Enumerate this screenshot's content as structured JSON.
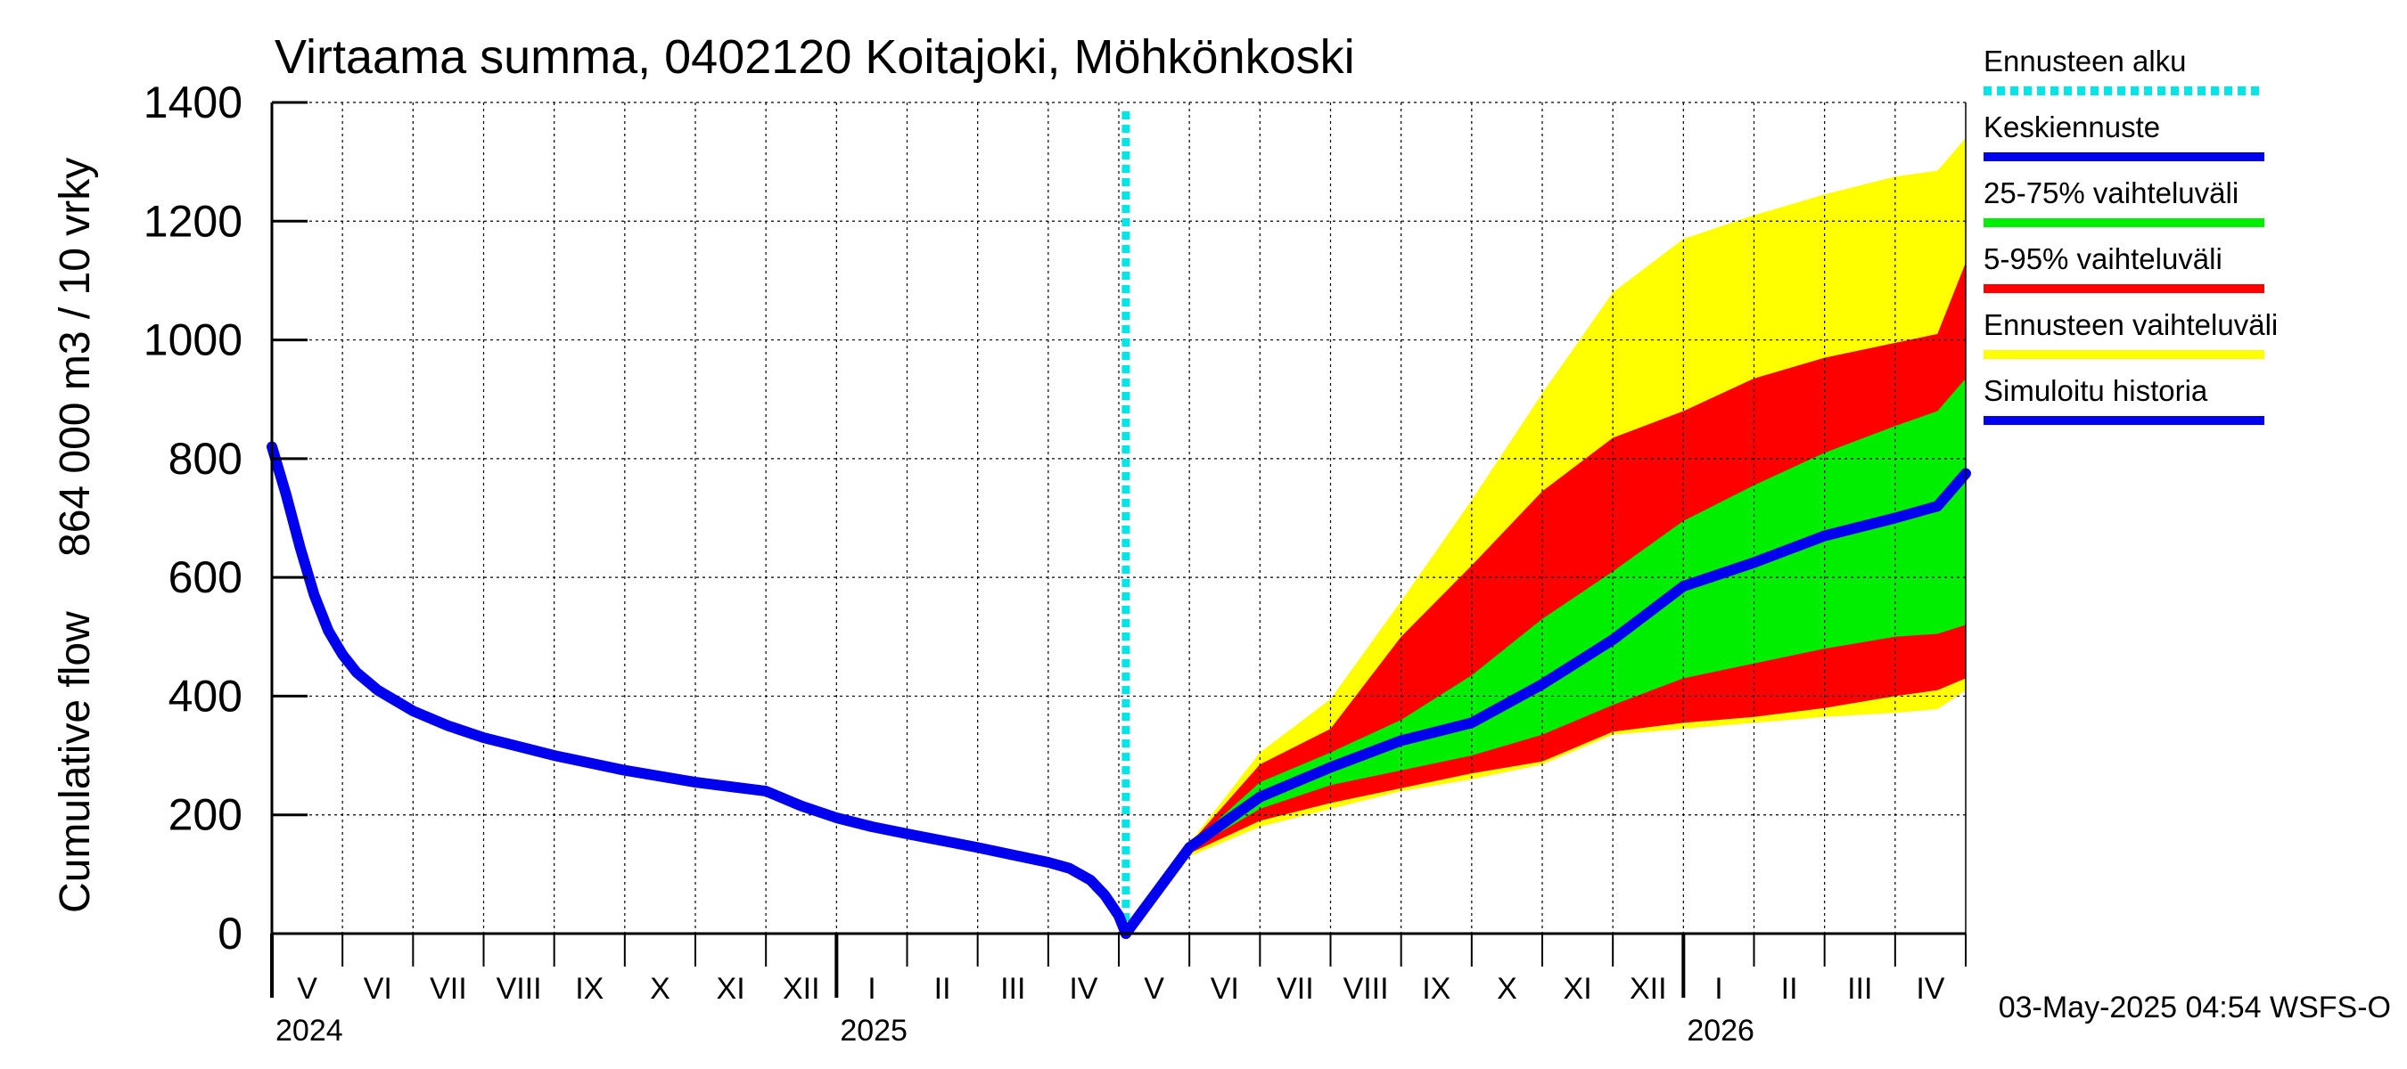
{
  "chart_data": {
    "type": "area",
    "title": "Virtaama summa, 0402120 Koitajoki, Möhkönkoski",
    "ylabel_line1": "Cumulative flow",
    "ylabel_line2": "864 000 m3 / 10 vrky",
    "ylim": [
      0,
      1400
    ],
    "yticks": [
      0,
      200,
      400,
      600,
      800,
      1000,
      1200,
      1400
    ],
    "x_range_months": [
      0,
      24
    ],
    "x_origin": "2024-05",
    "month_labels": [
      "V",
      "VI",
      "VII",
      "VIII",
      "IX",
      "X",
      "XI",
      "XII",
      "I",
      "II",
      "III",
      "IV",
      "V",
      "VI",
      "VII",
      "VIII",
      "IX",
      "X",
      "XI",
      "XII",
      "I",
      "II",
      "III",
      "IV"
    ],
    "year_labels": [
      {
        "label": "2024",
        "month": 0
      },
      {
        "label": "2025",
        "month": 8
      },
      {
        "label": "2026",
        "month": 20
      }
    ],
    "forecast_start_month": 12.1,
    "grid": true,
    "legend_position": "right",
    "legend": [
      {
        "label": "Ennusteen alku",
        "color": "#00e6e6",
        "style": "dotted"
      },
      {
        "label": "Keskiennuste",
        "color": "#0000ee",
        "style": "solid"
      },
      {
        "label": "25-75% vaihteluväli",
        "color": "#00ee00",
        "style": "solid"
      },
      {
        "label": "5-95% vaihteluväli",
        "color": "#ff0000",
        "style": "solid"
      },
      {
        "label": "Ennusteen vaihteluväli",
        "color": "#ffff00",
        "style": "solid"
      },
      {
        "label": "Simuloitu historia",
        "color": "#0000ee",
        "style": "solid"
      }
    ],
    "colors": {
      "forecast_start": "#00e6e6",
      "median": "#0000ee",
      "band_25_75": "#00ee00",
      "band_5_95": "#ff0000",
      "band_full": "#ffff00",
      "history": "#0000ee"
    },
    "history": {
      "x": [
        0,
        0.2,
        0.4,
        0.6,
        0.8,
        1.0,
        1.2,
        1.5,
        2.0,
        2.5,
        3.0,
        4.0,
        5.0,
        6.0,
        7.0,
        7.1,
        7.5,
        8.0,
        8.5,
        9.0,
        10.0,
        11.0,
        11.3,
        11.6,
        11.8,
        12.0,
        12.1
      ],
      "y": [
        820,
        740,
        650,
        570,
        510,
        470,
        440,
        410,
        375,
        350,
        330,
        300,
        275,
        255,
        240,
        235,
        215,
        195,
        180,
        168,
        145,
        120,
        110,
        90,
        65,
        30,
        0
      ]
    },
    "forecast": {
      "x": [
        12.1,
        13.0,
        14.0,
        15.0,
        16.0,
        17.0,
        18.0,
        19.0,
        20.0,
        21.0,
        22.0,
        23.0,
        23.6,
        24.0
      ],
      "median": [
        0,
        145,
        230,
        280,
        325,
        355,
        420,
        495,
        585,
        625,
        670,
        700,
        720,
        775
      ],
      "p25": [
        0,
        140,
        210,
        250,
        275,
        300,
        335,
        385,
        430,
        455,
        480,
        500,
        505,
        520
      ],
      "p75": [
        0,
        148,
        255,
        305,
        360,
        435,
        530,
        610,
        695,
        755,
        810,
        855,
        880,
        935
      ],
      "p5": [
        0,
        135,
        190,
        220,
        245,
        270,
        290,
        340,
        355,
        365,
        380,
        400,
        410,
        430
      ],
      "p95": [
        0,
        150,
        285,
        345,
        500,
        620,
        745,
        835,
        880,
        935,
        970,
        995,
        1010,
        1130
      ],
      "min": [
        0,
        130,
        180,
        210,
        240,
        260,
        285,
        335,
        345,
        355,
        365,
        372,
        378,
        410
      ],
      "max": [
        0,
        152,
        305,
        395,
        560,
        730,
        910,
        1080,
        1170,
        1210,
        1245,
        1275,
        1285,
        1340
      ]
    }
  },
  "footer": {
    "timestamp": "03-May-2025 04:54 WSFS-O"
  }
}
